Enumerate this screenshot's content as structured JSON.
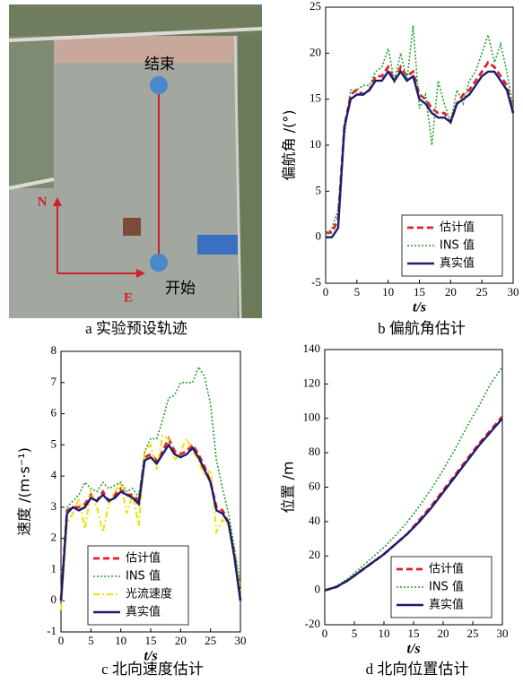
{
  "image_panel": {
    "end_label": "结束",
    "north_label": "N",
    "east_label": "E",
    "start_label": "开始",
    "caption": "a 实验预设轨迹"
  },
  "chart_data": [
    {
      "type": "line",
      "caption": "b 偏航角估计",
      "xlabel": "t/s",
      "ylabel": "偏航角 /(°)",
      "x": [
        0,
        1,
        2,
        3,
        4,
        5,
        6,
        7,
        8,
        9,
        10,
        11,
        12,
        13,
        14,
        15,
        16,
        17,
        18,
        19,
        20,
        21,
        22,
        23,
        24,
        25,
        26,
        27,
        28,
        29,
        30
      ],
      "xlim": [
        0,
        30
      ],
      "xticks": [
        0,
        5,
        10,
        15,
        20,
        25,
        30
      ],
      "ylim": [
        -5,
        25
      ],
      "yticks": [
        -5,
        0,
        5,
        10,
        15,
        20,
        25
      ],
      "legend": "lower right",
      "series": [
        {
          "name": "估计值",
          "color": "#e0202a",
          "style": "dashed",
          "values": [
            0.5,
            0.5,
            2,
            12,
            15.5,
            16,
            15.5,
            16,
            17.5,
            17.5,
            18.5,
            17,
            18.5,
            17.5,
            18,
            15.5,
            15,
            14,
            13.5,
            13.5,
            12.5,
            14.5,
            15.5,
            16,
            17,
            18,
            19,
            18.5,
            17.5,
            16.5,
            13.5
          ]
        },
        {
          "name": "INS 值",
          "color": "#22a02c",
          "style": "dotted",
          "values": [
            0,
            1,
            3,
            11,
            16,
            16,
            16.5,
            16.5,
            18,
            18.5,
            20.5,
            17,
            20,
            17,
            23,
            14,
            15.5,
            10,
            17,
            14.5,
            12.5,
            16,
            14.5,
            17,
            18,
            20,
            22,
            19,
            21,
            18,
            14
          ]
        },
        {
          "name": "真实值",
          "color": "#1c1c70",
          "style": "solid",
          "values": [
            0,
            0,
            1,
            12,
            15,
            15.5,
            15.5,
            16,
            17,
            17,
            18,
            17,
            18,
            17,
            17.5,
            15,
            14.5,
            13.5,
            13,
            13,
            12.5,
            14.5,
            15,
            15.5,
            16.5,
            17.5,
            18,
            18,
            17,
            16,
            13.5
          ]
        }
      ]
    },
    {
      "type": "line",
      "caption": "c 北向速度估计",
      "xlabel": "t/s",
      "ylabel": "速度 /(m·s⁻¹)",
      "x": [
        0,
        1,
        2,
        3,
        4,
        5,
        6,
        7,
        8,
        9,
        10,
        11,
        12,
        13,
        14,
        15,
        16,
        17,
        18,
        19,
        20,
        21,
        22,
        23,
        24,
        25,
        26,
        27,
        28,
        29,
        30
      ],
      "xlim": [
        0,
        30
      ],
      "xticks": [
        0,
        5,
        10,
        15,
        20,
        25,
        30
      ],
      "ylim": [
        -1,
        8
      ],
      "yticks": [
        -1,
        0,
        1,
        2,
        3,
        4,
        5,
        6,
        7,
        8
      ],
      "legend": "lower left",
      "series": [
        {
          "name": "估计值",
          "color": "#e0202a",
          "style": "dashed",
          "values": [
            0,
            2.9,
            3,
            3,
            3.1,
            3.4,
            3.2,
            3.5,
            3.2,
            3.4,
            3.6,
            3.4,
            3.4,
            3.2,
            4.6,
            4.7,
            4.5,
            4.8,
            5.2,
            4.8,
            4.7,
            4.8,
            5,
            4.7,
            4.3,
            3.8,
            3,
            2.9,
            2.5,
            1.5,
            0
          ]
        },
        {
          "name": "INS 值",
          "color": "#22a02c",
          "style": "dotted",
          "values": [
            0,
            3,
            3.2,
            3.4,
            3.8,
            3.6,
            3.5,
            3.8,
            3.6,
            3.7,
            3.8,
            3.5,
            3.6,
            3.3,
            4.8,
            5.2,
            5.2,
            5.8,
            6.5,
            6.6,
            7,
            7,
            7,
            7.5,
            7.2,
            6.3,
            4.5,
            3.6,
            2.8,
            1.7,
            0.5
          ]
        },
        {
          "name": "光流速度",
          "color": "#f2e000",
          "style": "dashdot",
          "values": [
            -0.3,
            2.5,
            2.8,
            3.3,
            2.3,
            3.5,
            3,
            2.2,
            3.1,
            3.5,
            3.8,
            2.8,
            3.4,
            2.4,
            4.8,
            5,
            4.2,
            5.3,
            5.2,
            4.5,
            4.8,
            5.2,
            4.8,
            4.5,
            4,
            4.2,
            2.2,
            2.6,
            2.4,
            1.5,
            0.3
          ]
        },
        {
          "name": "真实值",
          "color": "#1c1c70",
          "style": "solid",
          "values": [
            0,
            2.8,
            3,
            2.9,
            3,
            3.3,
            3.2,
            3.4,
            3.2,
            3.3,
            3.5,
            3.4,
            3.3,
            3.1,
            4.5,
            4.6,
            4.4,
            4.7,
            5,
            4.7,
            4.6,
            4.7,
            4.9,
            4.6,
            4.2,
            3.8,
            2.9,
            2.8,
            2.5,
            1.4,
            0
          ]
        }
      ]
    },
    {
      "type": "line",
      "caption": "d 北向位置估计",
      "xlabel": "t/s",
      "ylabel": "位置 /m",
      "x": [
        0,
        2,
        4,
        6,
        8,
        10,
        12,
        14,
        16,
        18,
        20,
        22,
        24,
        26,
        28,
        30
      ],
      "xlim": [
        0,
        30
      ],
      "xticks": [
        0,
        5,
        10,
        15,
        20,
        25,
        30
      ],
      "ylim": [
        -20,
        140
      ],
      "yticks": [
        -20,
        0,
        20,
        40,
        60,
        80,
        100,
        120,
        140
      ],
      "legend": "lower right",
      "series": [
        {
          "name": "估计值",
          "color": "#e0202a",
          "style": "dashed",
          "values": [
            0,
            2,
            6,
            11,
            16,
            21,
            27,
            33,
            41,
            49,
            58,
            67,
            76,
            85,
            93,
            101
          ]
        },
        {
          "name": "INS 值",
          "color": "#22a02c",
          "style": "dotted",
          "values": [
            0,
            2.5,
            7,
            13,
            19,
            25,
            32,
            40,
            49,
            59,
            70,
            82,
            95,
            107,
            120,
            130
          ]
        },
        {
          "name": "真实值",
          "color": "#1c1c70",
          "style": "solid",
          "values": [
            0,
            2,
            6,
            11,
            16,
            21,
            27,
            33,
            40,
            48,
            57,
            66,
            75,
            84,
            92,
            100
          ]
        }
      ]
    }
  ]
}
